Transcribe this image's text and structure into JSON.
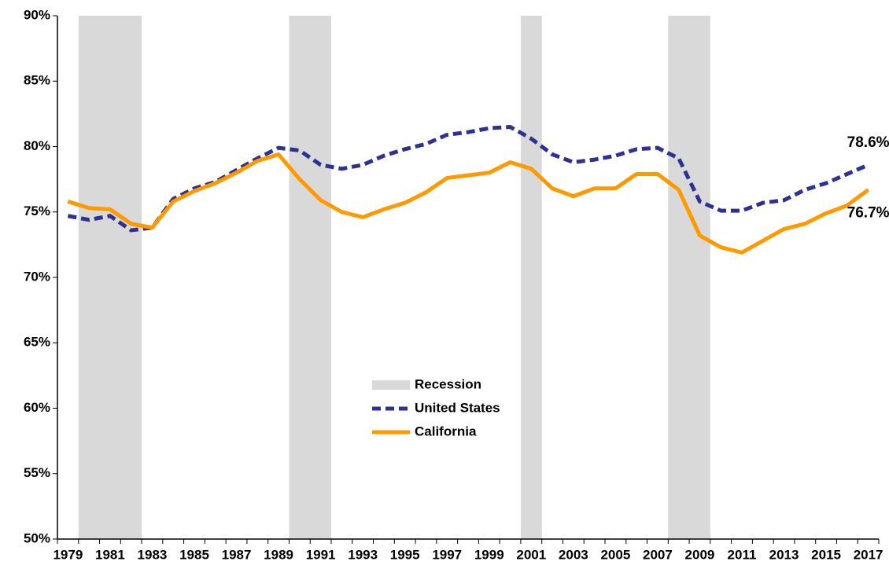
{
  "chart_data": {
    "type": "line",
    "categories": [
      "1979",
      null,
      "1981",
      null,
      "1983",
      null,
      "1985",
      null,
      "1987",
      null,
      "1989",
      null,
      "1991",
      null,
      "1993",
      null,
      "1995",
      null,
      "1997",
      null,
      "1999",
      null,
      "2001",
      null,
      "2003",
      null,
      "2005",
      null,
      "2007",
      null,
      "2009",
      null,
      "2011",
      null,
      "2013",
      null,
      "2015",
      null,
      "2017"
    ],
    "series": [
      {
        "name": "United States",
        "color": "#2e3192",
        "dash": true,
        "values": [
          74.7,
          74.4,
          74.7,
          73.6,
          73.8,
          76.0,
          76.8,
          77.3,
          78.2,
          79.1,
          79.9,
          79.7,
          78.6,
          78.3,
          78.6,
          79.3,
          79.8,
          80.2,
          80.9,
          81.1,
          81.4,
          81.5,
          80.6,
          79.4,
          78.8,
          79.0,
          79.3,
          79.8,
          79.9,
          79.1,
          75.8,
          75.1,
          75.1,
          75.7,
          75.9,
          76.7,
          77.2,
          77.9,
          78.6
        ],
        "value_labels": [
          null,
          null,
          null,
          null,
          null,
          null,
          null,
          null,
          null,
          null,
          null,
          null,
          null,
          null,
          null,
          null,
          null,
          null,
          null,
          null,
          null,
          null,
          null,
          null,
          null,
          null,
          null,
          null,
          null,
          null,
          null,
          null,
          null,
          null,
          null,
          null,
          null,
          null,
          "78.6%"
        ],
        "label_color": "#2222cc"
      },
      {
        "name": "California",
        "color": "#ff9900",
        "dash": false,
        "values": [
          75.8,
          75.3,
          75.2,
          74.1,
          73.8,
          75.8,
          76.6,
          77.2,
          78.0,
          78.9,
          79.4,
          77.5,
          75.9,
          75.0,
          74.6,
          75.2,
          75.7,
          76.5,
          77.6,
          77.8,
          78.0,
          78.8,
          78.3,
          76.8,
          76.2,
          76.8,
          76.8,
          77.9,
          77.9,
          76.7,
          73.2,
          72.3,
          71.9,
          72.8,
          73.7,
          74.1,
          74.9,
          75.5,
          76.7
        ],
        "value_labels": [
          null,
          null,
          null,
          null,
          null,
          null,
          null,
          null,
          null,
          null,
          null,
          null,
          null,
          null,
          null,
          null,
          null,
          null,
          null,
          null,
          null,
          null,
          null,
          null,
          null,
          null,
          null,
          null,
          null,
          null,
          null,
          null,
          null,
          null,
          null,
          null,
          null,
          null,
          "76.7%"
        ],
        "label_color": "#ee7711"
      }
    ],
    "recession": {
      "name": "Recession",
      "color": "#d9d9d9",
      "first_year": 1979,
      "spans": [
        {
          "start": 1980,
          "end": 1982
        },
        {
          "start": 1990,
          "end": 1991
        },
        {
          "start": 2001,
          "end": 2001
        },
        {
          "start": 2008,
          "end": 2009
        }
      ]
    },
    "ylim": [
      50,
      90
    ],
    "yticks": [
      {
        "value": 50,
        "label": "50%"
      },
      {
        "value": 55,
        "label": "55%"
      },
      {
        "value": 60,
        "label": "60%"
      },
      {
        "value": 65,
        "label": "65%"
      },
      {
        "value": 70,
        "label": "70%"
      },
      {
        "value": 75,
        "label": "75%"
      },
      {
        "value": 80,
        "label": "80%"
      },
      {
        "value": 85,
        "label": "85%"
      },
      {
        "value": 90,
        "label": "90%"
      }
    ],
    "grid": false
  }
}
